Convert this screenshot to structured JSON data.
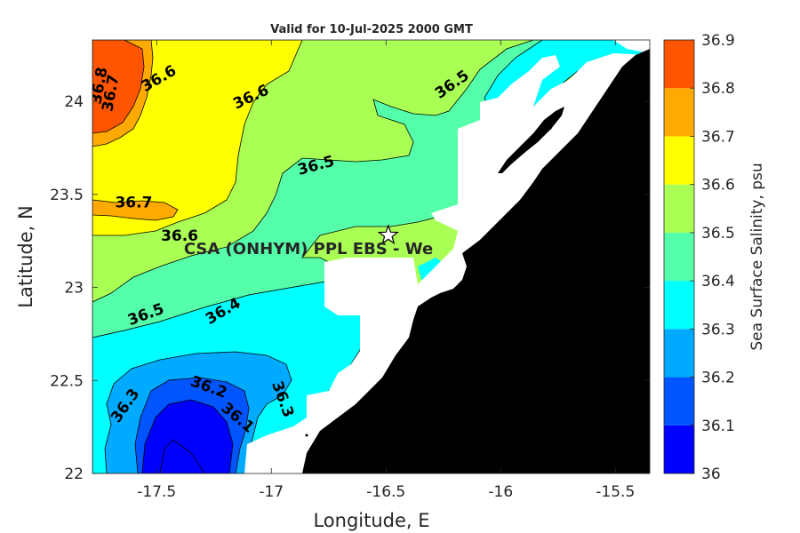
{
  "figure": {
    "title": "Valid for 10-Jul-2025 2000 GMT",
    "xlabel": "Longitude, E",
    "ylabel": "Latitude, N",
    "colorbar_label": "Sea Surface Salinity, psu"
  },
  "chart_data": {
    "type": "heatmap",
    "subtype": "filled-contour-map",
    "xlim": [
      -17.78,
      -15.35
    ],
    "ylim": [
      22.0,
      24.33
    ],
    "x_ticks": [
      -17.5,
      -17,
      -16.5,
      -16,
      -15.5
    ],
    "x_tick_labels": [
      "-17.5",
      "-17",
      "-16.5",
      "-16",
      "-15.5"
    ],
    "y_ticks": [
      22,
      22.5,
      23,
      23.5,
      24
    ],
    "y_tick_labels": [
      "22",
      "22.5",
      "23",
      "23.5",
      "24"
    ],
    "colorbar": {
      "levels": [
        36.0,
        36.1,
        36.2,
        36.3,
        36.4,
        36.5,
        36.6,
        36.7,
        36.8,
        36.9
      ],
      "tick_labels": [
        "36",
        "36.1",
        "36.2",
        "36.3",
        "36.4",
        "36.5",
        "36.6",
        "36.7",
        "36.8",
        "36.9"
      ],
      "colors": [
        "#0000ff",
        "#0055ff",
        "#00aaff",
        "#00ffff",
        "#55ffaa",
        "#aaff55",
        "#ffff00",
        "#ffaa00",
        "#ff5500"
      ]
    },
    "contour_labels": [
      {
        "text": "36.8",
        "lon": -17.73,
        "lat": 24.08
      },
      {
        "text": "36.7",
        "lon": -17.68,
        "lat": 24.04
      },
      {
        "text": "36.6",
        "lon": -17.48,
        "lat": 24.1
      },
      {
        "text": "36.6",
        "lon": -17.08,
        "lat": 24.0
      },
      {
        "text": "36.5",
        "lon": -16.2,
        "lat": 24.07
      },
      {
        "text": "36.5",
        "lon": -16.8,
        "lat": 23.63
      },
      {
        "text": "36.7",
        "lon": -17.6,
        "lat": 23.43
      },
      {
        "text": "36.6",
        "lon": -17.4,
        "lat": 23.25
      },
      {
        "text": "36.5",
        "lon": -17.54,
        "lat": 22.83
      },
      {
        "text": "36.4",
        "lon": -17.2,
        "lat": 22.85
      },
      {
        "text": "36.3",
        "lon": -17.62,
        "lat": 22.35
      },
      {
        "text": "36.2",
        "lon": -17.28,
        "lat": 22.44
      },
      {
        "text": "36.3",
        "lon": -16.97,
        "lat": 22.39
      },
      {
        "text": "36.1",
        "lon": -17.16,
        "lat": 22.28
      }
    ],
    "marker": {
      "symbol": "star",
      "lon": -16.49,
      "lat": 23.28,
      "label": "CSA (ONHYM) PPL EBS  - We"
    },
    "colors": {
      "land": "#000000",
      "no_data": "#ffffff",
      "contour_line": "#000000"
    }
  }
}
